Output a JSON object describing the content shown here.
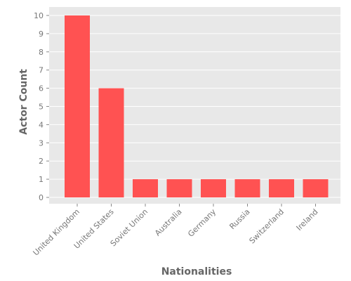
{
  "chart_data": {
    "type": "bar",
    "categories": [
      "United Kingdom",
      "United States",
      "Soviet Union",
      "Australia",
      "Germany",
      "Russia",
      "Switzerland",
      "Ireland"
    ],
    "values": [
      10,
      6,
      1,
      1,
      1,
      1,
      1,
      1
    ],
    "xlabel": "Nationalities",
    "ylabel": "Actor Count",
    "ylim": [
      0,
      10.5
    ],
    "yticks": [
      "0",
      "1",
      "2",
      "3",
      "4",
      "5",
      "6",
      "7",
      "8",
      "9",
      "10"
    ],
    "grid": true,
    "colors": {
      "bar": "#ff5252",
      "plot_background": "#e8e8e8",
      "grid": "#ffffff"
    }
  }
}
